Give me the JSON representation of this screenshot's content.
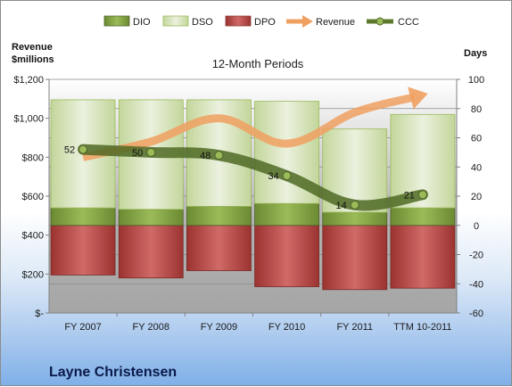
{
  "chart_data": {
    "type": "bar",
    "title": "12-Month Periods",
    "company": "Layne Christensen",
    "categories": [
      "FY 2007",
      "FY 2008",
      "FY 2009",
      "FY 2010",
      "FY 2011",
      "TTM 10-2011"
    ],
    "left_axis": {
      "label_line1": "Revenue",
      "label_line2": "$millions",
      "ylim": [
        0,
        1200
      ],
      "ticks": [
        "$-",
        "$200",
        "$400",
        "$600",
        "$800",
        "$1,000",
        "$1,200"
      ]
    },
    "right_axis": {
      "label": "Days",
      "ylim": [
        -60,
        100
      ],
      "ticks": [
        "-60",
        "-40",
        "-20",
        "0",
        "20",
        "40",
        "60",
        "80",
        "100"
      ]
    },
    "series": [
      {
        "name": "DIO",
        "axis": "right",
        "values": [
          12,
          11,
          13,
          15,
          9,
          12
        ],
        "color": "#77933c"
      },
      {
        "name": "DSO",
        "axis": "right",
        "values": [
          74,
          75,
          73,
          70,
          57,
          64
        ],
        "color": "#d7e4bd"
      },
      {
        "name": "DPO",
        "axis": "right",
        "values": [
          -34,
          -36,
          -31,
          -42,
          -44,
          -43
        ],
        "color": "#c0504d"
      },
      {
        "name": "Revenue",
        "axis": "left",
        "values": [
          800,
          880,
          1000,
          870,
          1030,
          1120
        ],
        "color": "#f79646"
      },
      {
        "name": "CCC",
        "axis": "right",
        "values": [
          52,
          50,
          48,
          34,
          14,
          21
        ],
        "color": "#5c7a2c"
      }
    ],
    "ccc_labels": [
      "52",
      "50",
      "48",
      "34",
      "14",
      "21"
    ],
    "grid": true,
    "legend_position": "top"
  }
}
